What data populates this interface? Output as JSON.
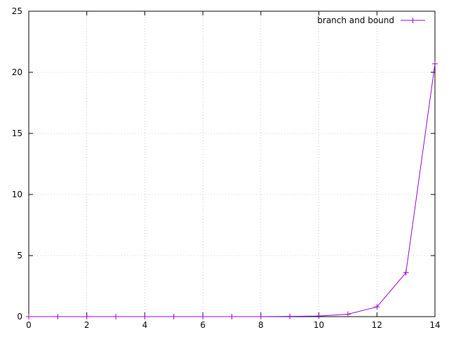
{
  "chart_data": {
    "type": "line",
    "title": "",
    "xlabel": "",
    "ylabel": "",
    "xlim": [
      0,
      14
    ],
    "ylim": [
      0,
      25
    ],
    "xticks": [
      0,
      2,
      4,
      6,
      8,
      10,
      12,
      14
    ],
    "yticks": [
      0,
      5,
      10,
      15,
      20,
      25
    ],
    "grid": true,
    "legend_position": "top-right",
    "series": [
      {
        "name": "branch and bound",
        "color": "#9400d3",
        "marker": "plus",
        "x": [
          0,
          1,
          2,
          3,
          4,
          5,
          6,
          7,
          8,
          9,
          10,
          11,
          12,
          13,
          14
        ],
        "y": [
          0,
          0,
          0,
          0,
          0,
          0,
          0,
          0,
          0,
          0.02,
          0.05,
          0.2,
          0.8,
          3.6,
          20.7
        ]
      }
    ]
  }
}
